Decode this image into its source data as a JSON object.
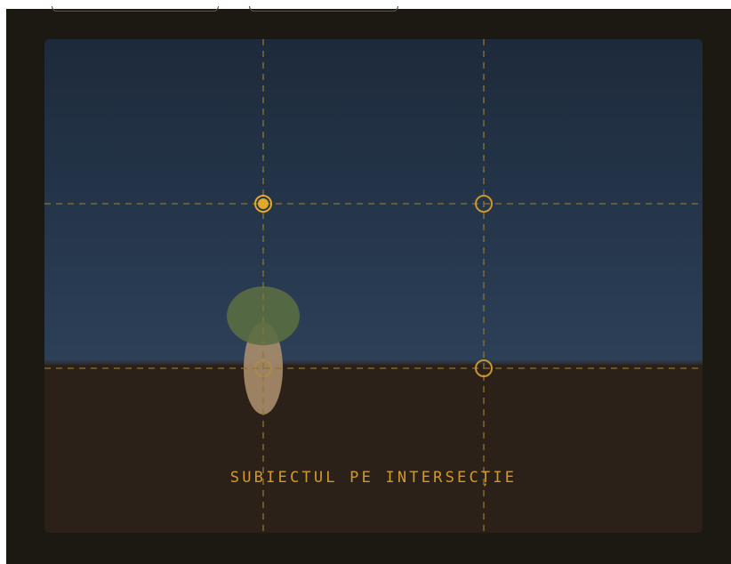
{
  "caption": "SUBIECTUL PE INTERSECȚIE",
  "colors": {
    "outer_frame": "#1c1913",
    "sky_top": "#1d2a3b",
    "sky_bottom": "#2c4058",
    "ground": "#2b2119",
    "grid_line": "#8a7432",
    "intersection_ring": "#c9972a",
    "active_point": "#e2a928",
    "caption": "#d1992d",
    "tree_trunk": "#a88d6c",
    "tree_crown": "#5a6d42"
  },
  "grid": {
    "type": "rule-of-thirds",
    "style": "dashed",
    "intersections": [
      {
        "id": "top-left",
        "active": true
      },
      {
        "id": "top-right",
        "active": false
      },
      {
        "id": "bottom-left",
        "active": false
      },
      {
        "id": "bottom-right",
        "active": false
      }
    ]
  },
  "scene": {
    "subject": "tree",
    "subject_icon": "tree-icon"
  }
}
